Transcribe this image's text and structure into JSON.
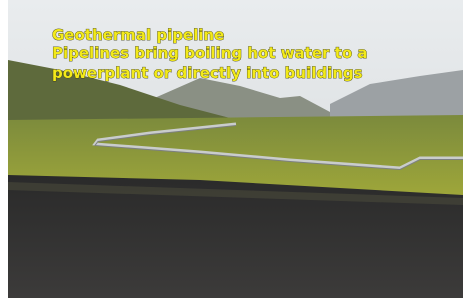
{
  "caption": {
    "title": "Geothermal pipeline",
    "lines": [
      "Pipelines bring boiling hot water to a",
      "powerplant or directly into buildings"
    ]
  }
}
